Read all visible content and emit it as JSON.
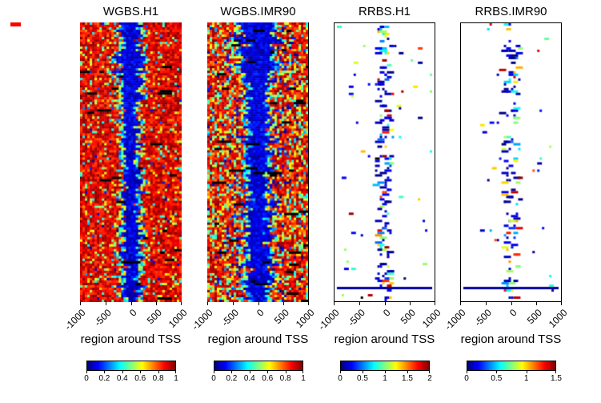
{
  "figure": {
    "background": "#ffffff",
    "annotation_mark_color": "#ff0000"
  },
  "chart_data": {
    "type": "heatmap",
    "colormap": [
      "#00007F",
      "#0000ff",
      "#007fff",
      "#00ffff",
      "#7fff7f",
      "#ffff00",
      "#ff7f00",
      "#ff0000",
      "#7f0000"
    ],
    "x_ticks": [
      "-1000",
      "-500",
      "0",
      "500",
      "1000"
    ],
    "x_range": [
      -1000,
      1000
    ],
    "n_rows": 116,
    "n_cols": 42,
    "panels": [
      {
        "title": "WGBS.H1",
        "xlabel": "region around TSS",
        "style": "dense",
        "seed": 101,
        "noise": 0.16,
        "band_min": 0.04,
        "band_var": 0.05,
        "blue_blobs": false,
        "black_prob": 0.007,
        "legend_range": [
          0,
          1
        ],
        "legend_ticks": [
          "0",
          "0.2",
          "0.4",
          "0.6",
          "0.8",
          "1"
        ]
      },
      {
        "title": "WGBS.IMR90",
        "xlabel": "region around TSS",
        "style": "dense",
        "seed": 202,
        "noise": 0.42,
        "band_min": 0.05,
        "band_var": 0.09,
        "blue_blobs": true,
        "black_prob": 0.01,
        "legend_range": [
          0,
          1
        ],
        "legend_ticks": [
          "0",
          "0.2",
          "0.4",
          "0.6",
          "0.8",
          "1"
        ]
      },
      {
        "title": "RRBS.H1",
        "xlabel": "region around TSS",
        "style": "sparse",
        "seed": 303,
        "center_density": 0.85,
        "scatter": 0.4,
        "legend_range": [
          0,
          2
        ],
        "legend_ticks": [
          "0",
          "0.5",
          "1",
          "1.5",
          "2"
        ]
      },
      {
        "title": "RRBS.IMR90",
        "xlabel": "region around TSS",
        "style": "sparse",
        "seed": 404,
        "center_density": 0.6,
        "scatter": 0.3,
        "legend_range": [
          0,
          1.5
        ],
        "legend_ticks": [
          "0",
          "0.5",
          "1",
          "1.5"
        ]
      }
    ]
  }
}
